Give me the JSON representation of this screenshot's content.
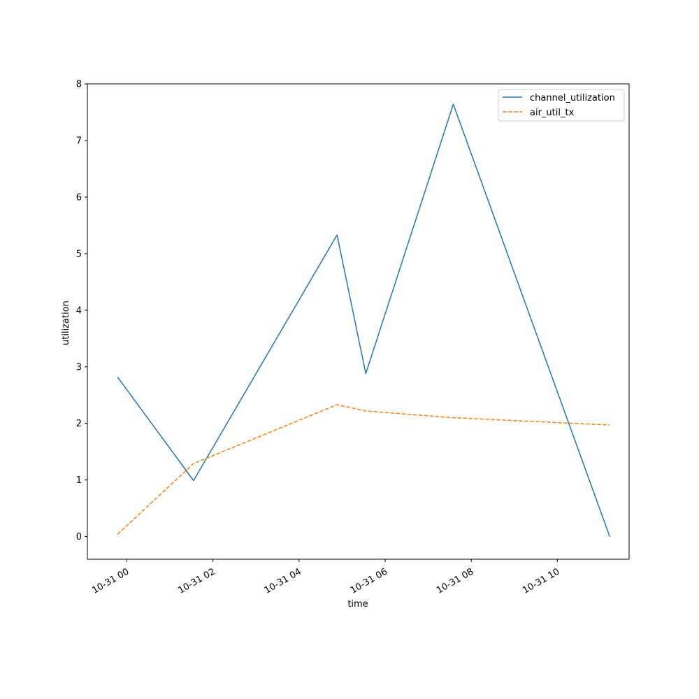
{
  "chart_data": {
    "type": "line",
    "xlabel": "time",
    "ylabel": "utilization",
    "ylim": [
      -0.4,
      8.0
    ],
    "y_ticks": [
      0,
      1,
      2,
      3,
      4,
      5,
      6,
      7,
      8
    ],
    "x_ticks": [
      "10-31 00",
      "10-31 02",
      "10-31 04",
      "10-31 06",
      "10-31 08",
      "10-31 10"
    ],
    "x_tick_times": [
      "2023-10-31T00:00",
      "2023-10-31T02:00",
      "2023-10-31T04:00",
      "2023-10-31T06:00",
      "2023-10-31T08:00",
      "2023-10-31T10:00"
    ],
    "xlim": [
      "2023-10-30T23:05",
      "2023-10-31T11:40"
    ],
    "grid": false,
    "legend_position": "top-right",
    "series": [
      {
        "name": "channel_utilization",
        "color": "#1f77b4",
        "style": "solid",
        "x": [
          "2023-10-30T23:47",
          "2023-10-31T01:33",
          "2023-10-31T04:53",
          "2023-10-31T05:33",
          "2023-10-31T07:35",
          "2023-10-31T11:13"
        ],
        "values": [
          2.82,
          0.99,
          5.33,
          2.88,
          7.64,
          0.0
        ]
      },
      {
        "name": "air_util_tx",
        "color": "#ff7f0e",
        "style": "dashed",
        "x": [
          "2023-10-30T23:47",
          "2023-10-31T01:33",
          "2023-10-31T04:53",
          "2023-10-31T05:33",
          "2023-10-31T07:35",
          "2023-10-31T11:13"
        ],
        "values": [
          0.04,
          1.29,
          2.33,
          2.22,
          2.1,
          1.97
        ]
      }
    ]
  }
}
